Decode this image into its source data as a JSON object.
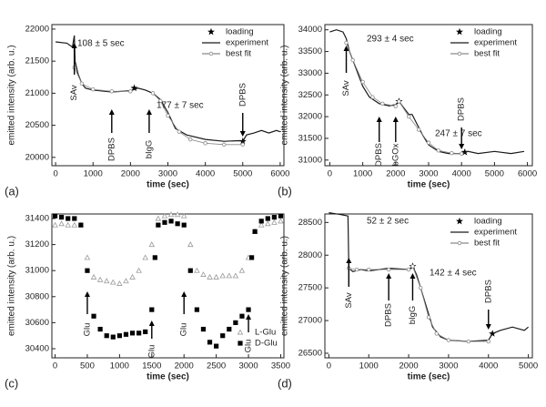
{
  "chart_data": [
    {
      "type": "line",
      "panel_label": "(a)",
      "xlabel": "time (sec)",
      "ylabel": "emitted intensity (arb. u.)",
      "xlim": [
        -100,
        6100
      ],
      "xticks": [
        0,
        1000,
        2000,
        3000,
        4000,
        5000,
        6000
      ],
      "ylim": [
        19870,
        22070
      ],
      "yticks": [
        20000,
        20500,
        21000,
        21500,
        22000
      ],
      "legend": "top-right",
      "series": [
        {
          "name": "loading",
          "color": "#000000",
          "style": "marker",
          "marker": "star",
          "x": [
            2100,
            5000
          ],
          "values": [
            21080,
            20250
          ]
        },
        {
          "name": "experiment",
          "color": "#1a1a1a",
          "style": "line",
          "marker": null,
          "x": [
            0,
            300,
            450,
            500,
            520,
            600,
            700,
            800,
            1000,
            1500,
            2000,
            2200,
            2400,
            2600,
            2800,
            3000,
            3200,
            3500,
            4000,
            4500,
            4900,
            5000,
            5100,
            5300,
            5500,
            5700,
            5900,
            6000
          ],
          "values": [
            21800,
            21780,
            21720,
            21900,
            21500,
            21300,
            21150,
            21080,
            21050,
            21020,
            21040,
            21080,
            21050,
            21000,
            20900,
            20700,
            20450,
            20350,
            20280,
            20250,
            20260,
            20250,
            20350,
            20380,
            20420,
            20380,
            20420,
            20400
          ]
        },
        {
          "name": "best fit",
          "color": "#8a8a8a",
          "style": "line",
          "marker": "circle",
          "x": [
            500,
            700,
            1000,
            1500,
            2000,
            2300,
            2600,
            2800,
            3000,
            3300,
            3600,
            4000,
            4500,
            5000
          ],
          "values": [
            21400,
            21150,
            21060,
            21030,
            21030,
            null,
            21000,
            20880,
            20650,
            20400,
            20280,
            20220,
            20200,
            20200
          ]
        }
      ],
      "annotations": [
        "108 ± 5 sec",
        "177 ± 7 sec"
      ],
      "arrows": [
        {
          "label": "SAv",
          "x": 500
        },
        {
          "label": "DPBS",
          "x": 1500
        },
        {
          "label": "bIgG",
          "x": 2500
        },
        {
          "label": "DPBS",
          "x": 5000
        }
      ]
    },
    {
      "type": "line",
      "panel_label": "(b)",
      "xlabel": "time (sec)",
      "ylabel": "emitted intensity (arb. u.)",
      "xlim": [
        -150,
        6150
      ],
      "xticks": [
        0,
        1000,
        2000,
        3000,
        4000,
        5000,
        6000
      ],
      "ylim": [
        30870,
        34120
      ],
      "yticks": [
        31000,
        31500,
        32000,
        32500,
        33000,
        33500,
        34000
      ],
      "legend": "top-right",
      "series": [
        {
          "name": "loading",
          "color": "#000000",
          "style": "marker",
          "marker": "star",
          "x": [
            2100,
            4100
          ],
          "values": [
            32350,
            31180
          ]
        },
        {
          "name": "experiment",
          "color": "#1a1a1a",
          "style": "line",
          "marker": null,
          "x": [
            0,
            200,
            400,
            500,
            600,
            800,
            1000,
            1200,
            1500,
            1800,
            2000,
            2100,
            2200,
            2400,
            2500,
            2600,
            2800,
            3000,
            3300,
            3600,
            4000,
            4200,
            4500,
            5000,
            5500,
            5900
          ],
          "values": [
            33950,
            34000,
            33950,
            33800,
            33500,
            33100,
            32700,
            32450,
            32300,
            32250,
            32280,
            32350,
            32250,
            32050,
            32050,
            31900,
            31600,
            31350,
            31200,
            31150,
            31150,
            31200,
            31150,
            31200,
            31150,
            31200
          ]
        },
        {
          "name": "best fit",
          "color": "#8a8a8a",
          "style": "line",
          "marker": "circle",
          "x": [
            500,
            700,
            1000,
            1300,
            1600,
            2000,
            2050,
            2100,
            2400,
            2700,
            3000,
            3300,
            3700,
            4000
          ],
          "values": [
            33700,
            33300,
            32800,
            32450,
            32300,
            32240,
            null,
            32350,
            32000,
            31700,
            31400,
            31220,
            31160,
            31150
          ]
        }
      ],
      "annotations": [
        "293 ± 4 sec",
        "247 ± 7 sec"
      ],
      "arrows": [
        {
          "label": "SAv",
          "x": 500
        },
        {
          "label": "DPBS",
          "x": 1500
        },
        {
          "label": "bGOx",
          "x": 2000
        },
        {
          "label": "DPBS",
          "x": 4000
        }
      ]
    },
    {
      "type": "line",
      "panel_label": "(c)",
      "xlabel": "time (sec)",
      "ylabel": "emitted intensity (arb. u.)",
      "xlim": [
        -50,
        3550
      ],
      "xticks": [
        0,
        500,
        1000,
        1500,
        2000,
        2500,
        3000,
        3500
      ],
      "ylim": [
        30330,
        31435
      ],
      "yticks": [
        30400,
        30600,
        30800,
        31000,
        31200,
        31400
      ],
      "legend": "bottom-right",
      "series": [
        {
          "name": "L-Glu",
          "color": "#9a9a9a",
          "style": "marker",
          "marker": "triangle",
          "x": [
            0,
            100,
            200,
            300,
            400,
            500,
            600,
            700,
            800,
            900,
            1000,
            1100,
            1200,
            1300,
            1400,
            1500,
            1600,
            1700,
            1800,
            1900,
            2000,
            2100,
            2200,
            2300,
            2400,
            2500,
            2600,
            2700,
            2800,
            2900,
            3000,
            3100,
            3200,
            3300,
            3400,
            3500
          ],
          "values": [
            31350,
            31360,
            31350,
            31350,
            31350,
            31100,
            30950,
            30930,
            30920,
            30910,
            30900,
            30920,
            30950,
            31000,
            31100,
            31200,
            31400,
            31420,
            31430,
            31430,
            31420,
            31200,
            31000,
            30970,
            30950,
            30950,
            30960,
            30960,
            30960,
            31000,
            31100,
            31300,
            31350,
            31360,
            31370,
            31380
          ]
        },
        {
          "name": "D-Glu",
          "color": "#000000",
          "style": "marker",
          "marker": "square",
          "x": [
            0,
            100,
            200,
            300,
            400,
            500,
            600,
            700,
            800,
            900,
            1000,
            1100,
            1200,
            1300,
            1400,
            1500,
            1550,
            1600,
            1700,
            1800,
            1900,
            2000,
            2100,
            2200,
            2300,
            2400,
            2500,
            2600,
            2700,
            2800,
            2900,
            3000,
            3050,
            3100,
            3200,
            3300,
            3400,
            3500
          ],
          "values": [
            31420,
            31410,
            31400,
            31400,
            31350,
            31000,
            30650,
            30550,
            30500,
            30490,
            30500,
            30510,
            30520,
            30520,
            30530,
            30700,
            31100,
            31350,
            31370,
            31380,
            31360,
            31350,
            31000,
            30700,
            30550,
            30450,
            30420,
            30500,
            30550,
            30600,
            30650,
            30700,
            31100,
            31300,
            31380,
            31400,
            31410,
            31420
          ]
        }
      ],
      "annotations": [],
      "arrows": [
        {
          "label": "Glu",
          "x": 500
        },
        {
          "label": "Glu",
          "x": 1500
        },
        {
          "label": "Glu",
          "x": 2000
        },
        {
          "label": "Glu",
          "x": 3000
        }
      ]
    },
    {
      "type": "line",
      "panel_label": "(d)",
      "xlabel": "time (sec)",
      "ylabel": "emitted intensity (arb. u.)",
      "xlim": [
        -100,
        5100
      ],
      "xticks": [
        0,
        1000,
        2000,
        3000,
        4000,
        5000
      ],
      "ylim": [
        26430,
        28630
      ],
      "yticks": [
        26500,
        27000,
        27500,
        28000,
        28500
      ],
      "legend": "top-right",
      "series": [
        {
          "name": "loading",
          "color": "#000000",
          "style": "marker",
          "marker": "star",
          "x": [
            2100,
            4100
          ],
          "values": [
            27830,
            26800
          ]
        },
        {
          "name": "experiment",
          "color": "#1a1a1a",
          "style": "line",
          "marker": null,
          "x": [
            0,
            300,
            480,
            500,
            600,
            800,
            1000,
            1500,
            2000,
            2100,
            2200,
            2400,
            2600,
            2800,
            3000,
            3500,
            4000,
            4100,
            4300,
            4600,
            4900,
            5000
          ],
          "values": [
            28650,
            28620,
            28600,
            27800,
            27750,
            27780,
            27760,
            27800,
            27780,
            27830,
            27700,
            27300,
            26900,
            26750,
            26700,
            26680,
            26700,
            26800,
            26850,
            26900,
            26850,
            26900
          ]
        },
        {
          "name": "best fit",
          "color": "#8a8a8a",
          "style": "line",
          "marker": "circle",
          "x": [
            500,
            700,
            1000,
            1500,
            2000,
            2050,
            2100,
            2300,
            2500,
            2700,
            3000,
            3500,
            4000
          ],
          "values": [
            27800,
            27780,
            27780,
            27780,
            27780,
            null,
            27830,
            27500,
            27050,
            26800,
            26700,
            26680,
            26680
          ]
        }
      ],
      "annotations": [
        "52 ± 2 sec",
        "142 ± 4 sec"
      ],
      "arrows": [
        {
          "label": "SAv",
          "x": 500
        },
        {
          "label": "DPBS",
          "x": 1500
        },
        {
          "label": "bIgG",
          "x": 2100
        },
        {
          "label": "DPBS",
          "x": 4000
        }
      ]
    }
  ]
}
